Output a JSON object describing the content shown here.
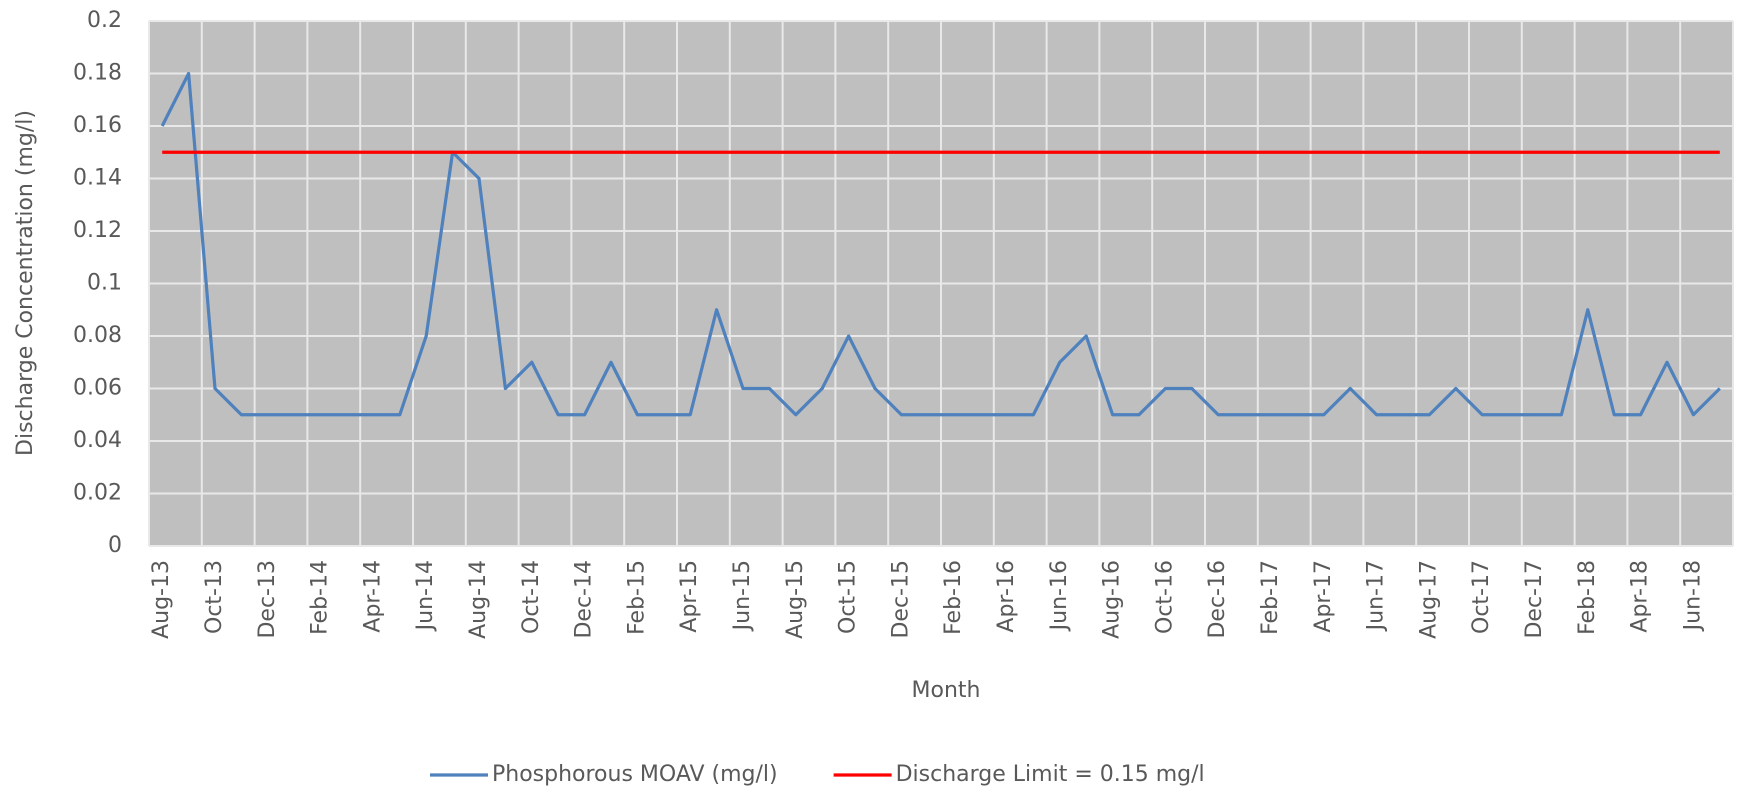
{
  "chart_data": {
    "type": "line",
    "x_label": "Month",
    "y_label": "Discharge Concentration (mg/l)",
    "categories": [
      "Aug-13",
      null,
      "Oct-13",
      null,
      "Dec-13",
      null,
      "Feb-14",
      null,
      "Apr-14",
      null,
      "Jun-14",
      null,
      "Aug-14",
      null,
      "Oct-14",
      null,
      "Dec-14",
      null,
      "Feb-15",
      null,
      "Apr-15",
      null,
      "Jun-15",
      null,
      "Aug-15",
      null,
      "Oct-15",
      null,
      "Dec-15",
      null,
      "Feb-16",
      null,
      "Apr-16",
      null,
      "Jun-16",
      null,
      "Aug-16",
      null,
      "Oct-16",
      null,
      "Dec-16",
      null,
      "Feb-17",
      null,
      "Apr-17",
      null,
      "Jun-17",
      null,
      "Aug-17",
      null,
      "Oct-17",
      null,
      "Dec-17",
      null,
      "Feb-18",
      null,
      "Apr-18",
      null,
      "Jun-18",
      null
    ],
    "series": [
      {
        "name": "Phosphorous MOAV (mg/l)",
        "color": "#4f81bd",
        "values": [
          0.16,
          0.18,
          0.06,
          0.05,
          0.05,
          0.05,
          0.05,
          0.05,
          0.05,
          0.05,
          0.08,
          0.15,
          0.14,
          0.06,
          0.07,
          0.05,
          0.05,
          0.07,
          0.05,
          0.05,
          0.05,
          0.09,
          0.06,
          0.06,
          0.05,
          0.06,
          0.08,
          0.06,
          0.05,
          0.05,
          0.05,
          0.05,
          0.05,
          0.05,
          0.07,
          0.08,
          0.05,
          0.05,
          0.06,
          0.06,
          0.05,
          0.05,
          0.05,
          0.05,
          0.05,
          0.06,
          0.05,
          0.05,
          0.05,
          0.06,
          0.05,
          0.05,
          0.05,
          0.05,
          0.09,
          0.05,
          0.05,
          0.07,
          0.05,
          0.06
        ]
      },
      {
        "name": "Discharge Limit = 0.15 mg/l",
        "color": "#ff0000",
        "values": [
          0.15,
          0.15,
          0.15,
          0.15,
          0.15,
          0.15,
          0.15,
          0.15,
          0.15,
          0.15,
          0.15,
          0.15,
          0.15,
          0.15,
          0.15,
          0.15,
          0.15,
          0.15,
          0.15,
          0.15,
          0.15,
          0.15,
          0.15,
          0.15,
          0.15,
          0.15,
          0.15,
          0.15,
          0.15,
          0.15,
          0.15,
          0.15,
          0.15,
          0.15,
          0.15,
          0.15,
          0.15,
          0.15,
          0.15,
          0.15,
          0.15,
          0.15,
          0.15,
          0.15,
          0.15,
          0.15,
          0.15,
          0.15,
          0.15,
          0.15,
          0.15,
          0.15,
          0.15,
          0.15,
          0.15,
          0.15,
          0.15,
          0.15,
          0.15,
          0.15
        ]
      }
    ],
    "ylim": [
      0,
      0.2
    ],
    "yticks": [
      0,
      0.02,
      0.04,
      0.06,
      0.08,
      0.1,
      0.12,
      0.14,
      0.16,
      0.18,
      0.2
    ],
    "grid": true,
    "legend": "bottom"
  }
}
